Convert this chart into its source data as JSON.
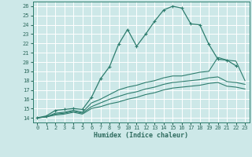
{
  "xlabel": "Humidex (Indice chaleur)",
  "bg_color": "#cde8e8",
  "grid_color": "#ffffff",
  "line_color": "#2e7d6e",
  "xlim": [
    -0.5,
    23.5
  ],
  "ylim": [
    13.5,
    26.5
  ],
  "xticks": [
    0,
    1,
    2,
    3,
    4,
    5,
    6,
    7,
    8,
    9,
    10,
    11,
    12,
    13,
    14,
    15,
    16,
    17,
    18,
    19,
    20,
    21,
    22,
    23
  ],
  "yticks": [
    14,
    15,
    16,
    17,
    18,
    19,
    20,
    21,
    22,
    23,
    24,
    25,
    26
  ],
  "lines": [
    {
      "x": [
        0,
        1,
        2,
        3,
        4,
        5,
        6,
        7,
        8,
        9,
        10,
        11,
        12,
        13,
        14,
        15,
        16,
        17,
        18,
        19,
        20,
        21,
        22
      ],
      "y": [
        14,
        14.2,
        14.8,
        14.9,
        15.0,
        14.9,
        16.2,
        18.2,
        19.5,
        21.9,
        23.5,
        21.7,
        23.0,
        24.4,
        25.6,
        26.0,
        25.8,
        24.1,
        24.0,
        21.9,
        20.3,
        20.2,
        19.6
      ],
      "marker": true
    },
    {
      "x": [
        0,
        1,
        2,
        3,
        4,
        5,
        6,
        7,
        8,
        9,
        10,
        11,
        12,
        13,
        14,
        15,
        16,
        17,
        18,
        19,
        20,
        21,
        22,
        23
      ],
      "y": [
        14,
        14.1,
        14.5,
        14.6,
        14.8,
        14.6,
        15.6,
        16.0,
        16.5,
        17.0,
        17.3,
        17.5,
        17.8,
        18.0,
        18.3,
        18.5,
        18.5,
        18.7,
        18.9,
        19.0,
        20.5,
        20.2,
        20.1,
        18.0
      ],
      "marker": false
    },
    {
      "x": [
        0,
        1,
        2,
        3,
        4,
        5,
        6,
        7,
        8,
        9,
        10,
        11,
        12,
        13,
        14,
        15,
        16,
        17,
        18,
        19,
        20,
        21,
        22,
        23
      ],
      "y": [
        14,
        14.1,
        14.4,
        14.5,
        14.7,
        14.5,
        15.2,
        15.6,
        16.0,
        16.3,
        16.6,
        16.8,
        17.1,
        17.3,
        17.6,
        17.8,
        17.9,
        18.0,
        18.1,
        18.3,
        18.4,
        17.9,
        17.8,
        17.6
      ],
      "marker": false
    },
    {
      "x": [
        0,
        1,
        2,
        3,
        4,
        5,
        6,
        7,
        8,
        9,
        10,
        11,
        12,
        13,
        14,
        15,
        16,
        17,
        18,
        19,
        20,
        21,
        22,
        23
      ],
      "y": [
        14,
        14.1,
        14.3,
        14.4,
        14.6,
        14.4,
        15.0,
        15.2,
        15.5,
        15.7,
        16.0,
        16.2,
        16.5,
        16.7,
        17.0,
        17.2,
        17.3,
        17.4,
        17.5,
        17.7,
        17.8,
        17.4,
        17.3,
        17.1
      ],
      "marker": false
    }
  ]
}
